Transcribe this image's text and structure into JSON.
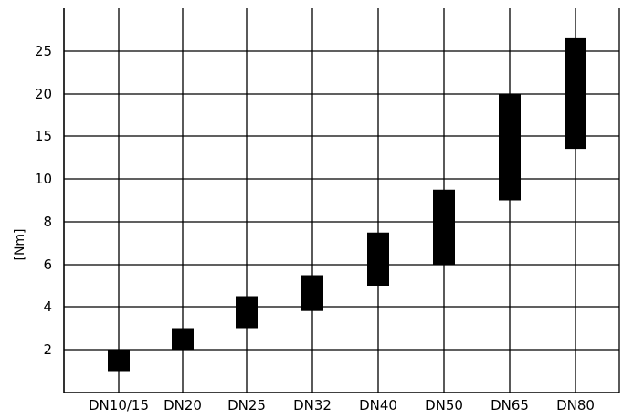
{
  "chart_data": {
    "type": "bar",
    "bar_style": "floating-range",
    "ylabel": "[Nm]",
    "categories": [
      "DN10/15",
      "DN20",
      "DN25",
      "DN32",
      "DN40",
      "DN50",
      "DN65",
      "DN80"
    ],
    "y_ticks": [
      "2",
      "4",
      "6",
      "8",
      "10",
      "15",
      "20",
      "25"
    ],
    "y_scale": "categorical-ticks (non-linear)",
    "series": [
      {
        "low": [
          1,
          2,
          3,
          3.8,
          5,
          6,
          9,
          13.5
        ],
        "high": [
          2,
          3,
          4.5,
          5.5,
          7.5,
          9.5,
          20,
          26.5
        ]
      }
    ],
    "grid": true,
    "legend": "none",
    "bar_color": "#000000"
  }
}
